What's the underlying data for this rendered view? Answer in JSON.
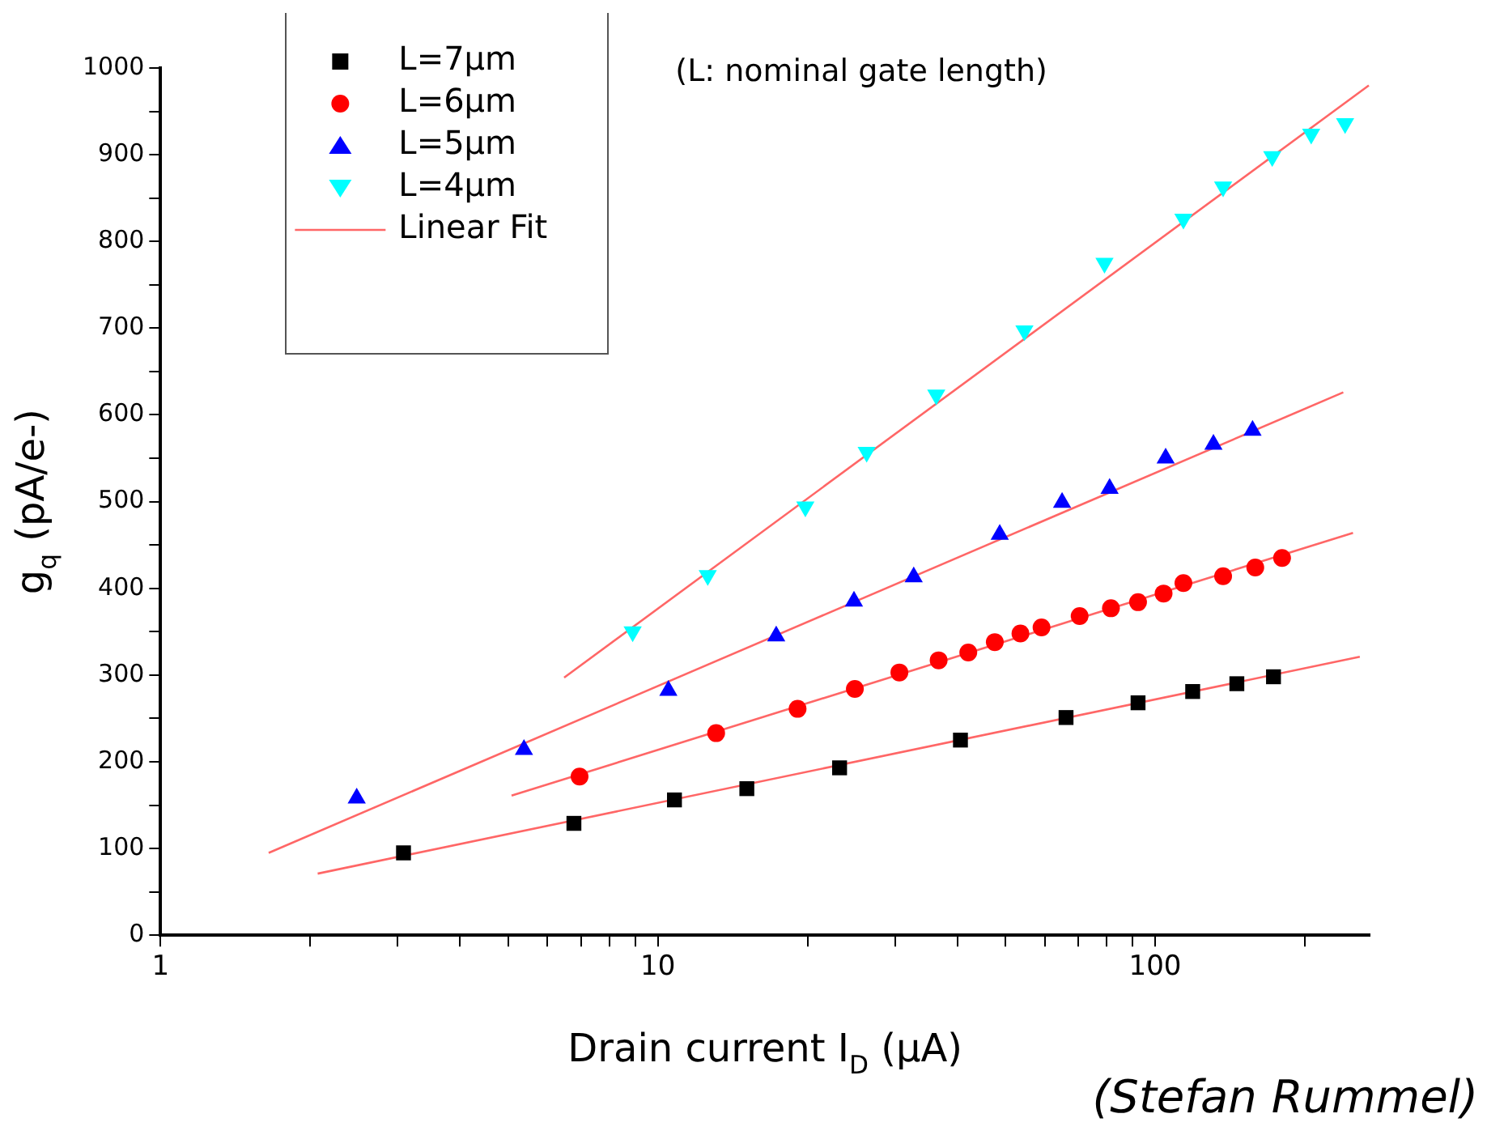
{
  "chart_data": {
    "type": "scatter",
    "xlabel": "Drain current I$_{D}$ (µA)",
    "ylabel": "g$_{q}$ (pA/e-)",
    "log": "x",
    "xlim": [
      1,
      270
    ],
    "xticks": [
      1,
      {
        "value": 2,
        "label": null
      },
      {
        "value": 3,
        "label": null
      },
      {
        "value": 4,
        "label": null
      },
      {
        "value": 5,
        "label": null
      },
      {
        "value": 6,
        "label": null
      },
      {
        "value": 7,
        "label": null
      },
      {
        "value": 8,
        "label": null
      },
      {
        "value": 9,
        "label": null
      },
      10,
      {
        "value": 20,
        "label": null
      },
      {
        "value": 30,
        "label": null
      },
      {
        "value": 40,
        "label": null
      },
      {
        "value": 50,
        "label": null
      },
      {
        "value": 60,
        "label": null
      },
      {
        "value": 70,
        "label": null
      },
      {
        "value": 80,
        "label": null
      },
      {
        "value": 90,
        "label": null
      },
      100,
      {
        "value": 200,
        "label": null
      }
    ],
    "ylim": [
      0,
      1000
    ],
    "yticks": [
      0,
      {
        "value": 50,
        "label": null
      },
      100,
      {
        "value": 150,
        "label": null
      },
      200,
      {
        "value": 250,
        "label": null
      },
      300,
      {
        "value": 350,
        "label": null
      },
      400,
      {
        "value": 450,
        "label": null
      },
      500,
      {
        "value": 550,
        "label": null
      },
      600,
      {
        "value": 650,
        "label": null
      },
      700,
      {
        "value": 750,
        "label": null
      },
      800,
      {
        "value": 850,
        "label": null
      },
      900,
      {
        "value": 950,
        "label": null
      },
      1000
    ],
    "legend": "top left",
    "annotations": [
      "(L: nominal gate length)",
      "(Stefan Rummel)"
    ],
    "series": [
      {
        "name": "L=7µm",
        "type": "scatter",
        "marker": "square",
        "color": "#000000",
        "x": [
          3.08,
          6.78,
          10.8,
          15.1,
          23.2,
          40.6,
          66.2,
          92.4,
          119,
          146,
          173
        ],
        "values": [
          95,
          129,
          156,
          169,
          193,
          225,
          251,
          268,
          281,
          290,
          298
        ]
      },
      {
        "name": "L=6µm",
        "type": "scatter",
        "marker": "circle",
        "color": "#ff0000",
        "x": [
          6.96,
          13.1,
          19.1,
          24.9,
          30.6,
          36.7,
          42.1,
          47.6,
          53.6,
          59.1,
          70.5,
          81.5,
          92.4,
          104,
          114,
          137,
          159,
          180
        ],
        "values": [
          183,
          233,
          261,
          284,
          303,
          317,
          326,
          338,
          348,
          355,
          368,
          377,
          384,
          394,
          406,
          414,
          424,
          435
        ]
      },
      {
        "name": "L=5µm",
        "type": "scatter",
        "marker": "triangle",
        "color": "#0000ff",
        "x": [
          2.48,
          5.38,
          10.5,
          17.3,
          24.8,
          32.7,
          48.7,
          65,
          81,
          105,
          131,
          157
        ],
        "values": [
          158,
          214,
          282,
          345,
          385,
          413,
          462,
          499,
          515,
          550,
          566,
          582
        ]
      },
      {
        "name": "L=4µm",
        "type": "scatter",
        "marker": "triangle-down",
        "color": "#00ffff",
        "x": [
          8.9,
          12.6,
          19.8,
          26.3,
          36.3,
          54.6,
          79.1,
          114,
          137,
          172,
          206,
          241
        ],
        "values": [
          350,
          415,
          494,
          557,
          623,
          697,
          775,
          826,
          863,
          898,
          924,
          936
        ]
      },
      {
        "name": "Linear Fit",
        "type": "line",
        "marker": "none",
        "color": "#ff6666",
        "x": [
          2.07,
          258
        ],
        "values": [
          71,
          321
        ]
      },
      {
        "type": "line",
        "marker": "none",
        "color": "#ff6666",
        "x": [
          5.08,
          250
        ],
        "values": [
          161,
          464
        ]
      },
      {
        "type": "line",
        "marker": "none",
        "color": "#ff6666",
        "x": [
          1.65,
          239
        ],
        "values": [
          95,
          626
        ]
      },
      {
        "type": "line",
        "marker": "none",
        "color": "#ff6666",
        "x": [
          6.48,
          269
        ],
        "values": [
          297,
          980
        ]
      }
    ]
  }
}
